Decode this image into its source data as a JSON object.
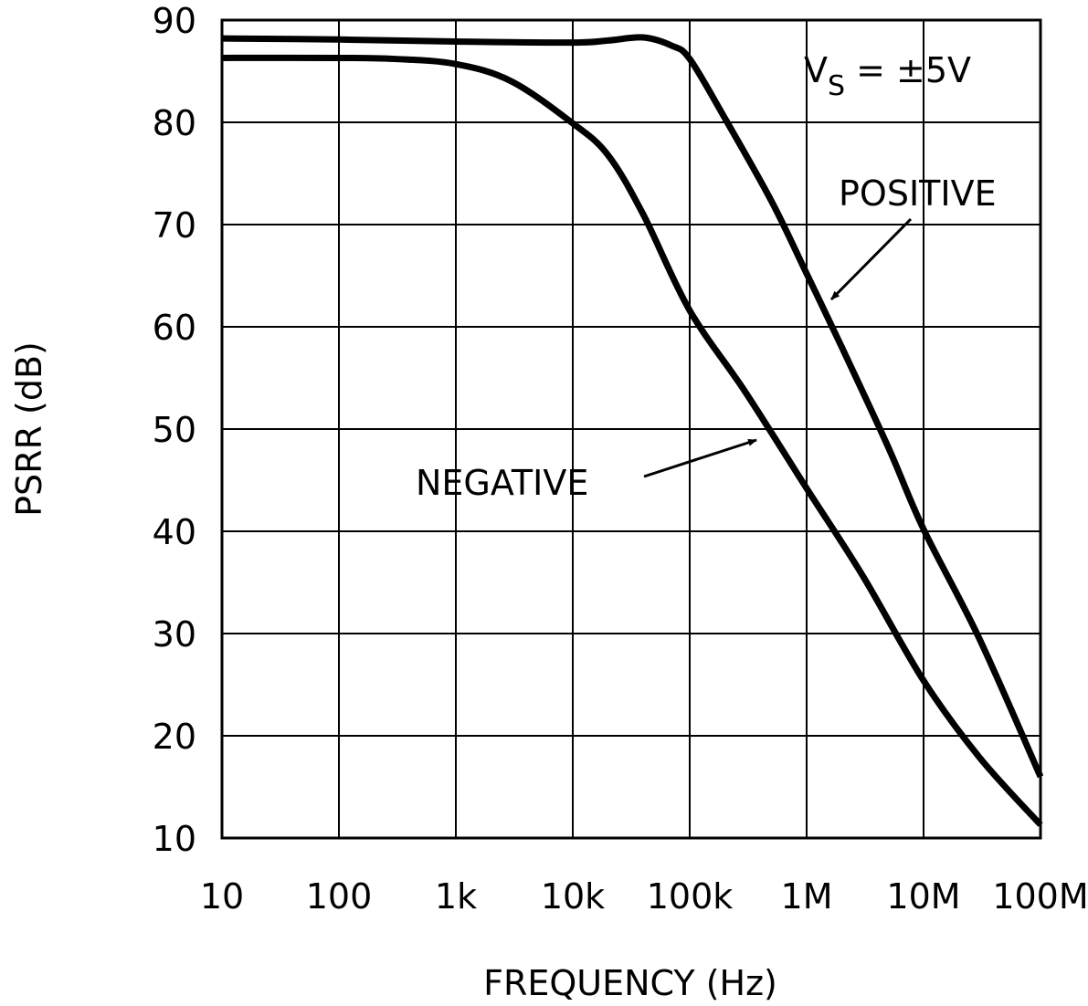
{
  "chart_data": {
    "type": "line",
    "title": "",
    "xlabel": "FREQUENCY (Hz)",
    "ylabel": "PSRR (dB)",
    "x_scale": "log",
    "xlim": [
      10,
      100000000
    ],
    "ylim": [
      10,
      90
    ],
    "grid": true,
    "x_ticks": [
      {
        "value": 10,
        "label": "10"
      },
      {
        "value": 100,
        "label": "100"
      },
      {
        "value": 1000,
        "label": "1k"
      },
      {
        "value": 10000,
        "label": "10k"
      },
      {
        "value": 100000,
        "label": "100k"
      },
      {
        "value": 1000000,
        "label": "1M"
      },
      {
        "value": 10000000,
        "label": "10M"
      },
      {
        "value": 100000000,
        "label": "100M"
      }
    ],
    "y_ticks": [
      "10",
      "20",
      "30",
      "40",
      "50",
      "60",
      "70",
      "80",
      "90"
    ],
    "annotation": {
      "main": "V",
      "sub": "S",
      "rest": " = ±5V"
    },
    "series": [
      {
        "name": "POSITIVE",
        "x": [
          10,
          100,
          1000,
          10000,
          20000,
          40000,
          70000,
          100000,
          200000,
          500000,
          1000000,
          2000000,
          5000000,
          10000000,
          30000000,
          100000000
        ],
        "y": [
          88.2,
          88.1,
          87.9,
          87.8,
          88.0,
          88.3,
          87.5,
          86.2,
          80.4,
          72.3,
          65.2,
          58.0,
          48.2,
          40.2,
          29.5,
          16.0
        ]
      },
      {
        "name": "NEGATIVE",
        "x": [
          10,
          100,
          300,
          1000,
          3000,
          10000,
          20000,
          40000,
          100000,
          300000,
          1000000,
          3000000,
          10000000,
          30000000,
          100000000
        ],
        "y": [
          86.3,
          86.3,
          86.2,
          85.7,
          84.0,
          79.9,
          76.8,
          71.0,
          61.6,
          53.6,
          44.2,
          35.7,
          25.4,
          17.9,
          11.3
        ]
      }
    ]
  }
}
